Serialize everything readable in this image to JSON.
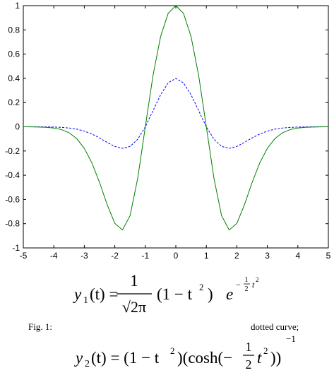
{
  "chart_data": {
    "type": "line",
    "x": [
      -5,
      -4.75,
      -4.5,
      -4.25,
      -4,
      -3.75,
      -3.5,
      -3.25,
      -3,
      -2.75,
      -2.5,
      -2.25,
      -2,
      -1.75,
      -1.5,
      -1.25,
      -1,
      -0.75,
      -0.5,
      -0.25,
      0,
      0.25,
      0.5,
      0.75,
      1,
      1.25,
      1.5,
      1.75,
      2,
      2.25,
      2.5,
      2.75,
      3,
      3.25,
      3.5,
      3.75,
      4,
      4.25,
      4.5,
      4.75,
      5
    ],
    "series": [
      {
        "color": "#0000ff",
        "dash": true,
        "values": [
          0,
          0,
          0,
          -0.001,
          -0.002,
          -0.005,
          -0.01,
          -0.019,
          -0.036,
          -0.06,
          -0.092,
          -0.129,
          -0.162,
          -0.178,
          -0.162,
          -0.103,
          0,
          0.132,
          0.264,
          0.363,
          0.399,
          0.363,
          0.264,
          0.132,
          0,
          -0.103,
          -0.162,
          -0.178,
          -0.162,
          -0.129,
          -0.092,
          -0.06,
          -0.036,
          -0.019,
          -0.01,
          -0.005,
          -0.002,
          -0.001,
          0,
          0,
          0
        ]
      },
      {
        "color": "#008000",
        "dash": false,
        "values": [
          0,
          -0.001,
          -0.002,
          -0.004,
          -0.01,
          -0.023,
          -0.049,
          -0.097,
          -0.178,
          -0.299,
          -0.46,
          -0.643,
          -0.797,
          -0.852,
          -0.734,
          -0.426,
          0,
          0.421,
          0.744,
          0.937,
          1,
          0.937,
          0.744,
          0.421,
          0,
          -0.426,
          -0.734,
          -0.852,
          -0.797,
          -0.643,
          -0.46,
          -0.299,
          -0.178,
          -0.097,
          -0.049,
          -0.023,
          -0.01,
          -0.004,
          -0.002,
          -0.001,
          0
        ]
      }
    ],
    "xlim": [
      -5,
      5
    ],
    "xticks": [
      -5,
      -4,
      -3,
      -2,
      -1,
      0,
      1,
      2,
      3,
      4,
      5
    ],
    "ylim": [
      -1,
      1
    ],
    "yticks": [
      -1,
      -0.8,
      -0.6,
      -0.4,
      -0.2,
      0,
      0.2,
      0.4,
      0.6,
      0.8,
      1
    ],
    "grid": false
  },
  "caption": {
    "label": "Fig. 1:",
    "note": "dotted curve;",
    "formula_1": {
      "y": "y",
      "sub": "1",
      "arg": "(t) =",
      "num": "1",
      "den": "√2π",
      "factor": "(1 − t",
      "sq": "2",
      "close": ")",
      "e": "e",
      "exp_sign": "−",
      "exp_num": "1",
      "exp_den": "2",
      "exp_t": "t",
      "exp_sq": "2"
    },
    "formula_2": {
      "y": "y",
      "sub": "2",
      "arg": "(t) = (1 − t",
      "sq": "2",
      "mid": ")(cosh(−",
      "num": "1",
      "den": "2",
      "t": "t",
      "sq2": "2",
      "close": "))",
      "exp": "−1"
    }
  }
}
